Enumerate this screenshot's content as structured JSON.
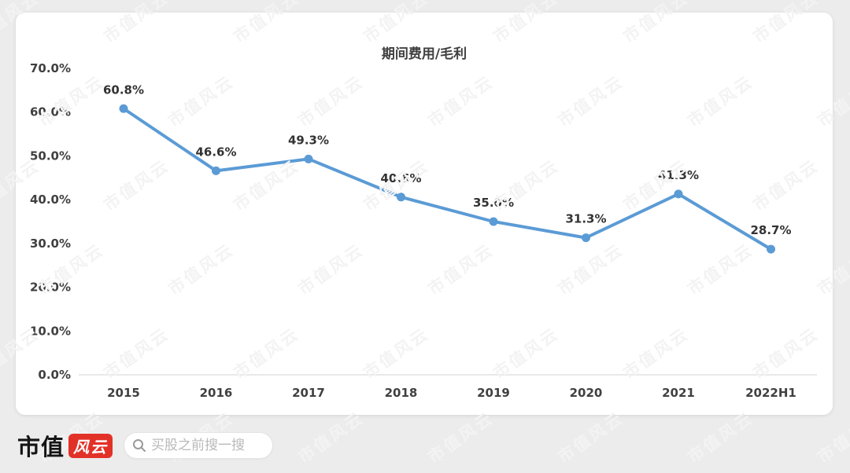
{
  "watermark": {
    "text": "市值风云"
  },
  "chart_data": {
    "type": "line",
    "title": "期间费用/毛利",
    "categories": [
      "2015",
      "2016",
      "2017",
      "2018",
      "2019",
      "2020",
      "2021",
      "2022H1"
    ],
    "values": [
      60.8,
      46.6,
      49.3,
      40.6,
      35.0,
      31.3,
      41.3,
      28.7
    ],
    "data_labels": [
      "60.8%",
      "46.6%",
      "49.3%",
      "40.6%",
      "35.0%",
      "31.3%",
      "41.3%",
      "28.7%"
    ],
    "y_tick_labels": [
      "70.0%",
      "60.0%",
      "50.0%",
      "40.0%",
      "30.0%",
      "20.0%",
      "10.0%",
      "0.0%"
    ],
    "ylim": [
      0,
      70
    ],
    "y_tick_step": 10,
    "grid": false,
    "legend": "none",
    "line_color": "#5B9BD5",
    "marker": "circle",
    "label_color": "#333333",
    "axis_text_color": "#404040",
    "axis_line_color": "#d9d9d9"
  },
  "footer": {
    "logo_text": "市值",
    "logo_badge_text": "风云",
    "brand_red": "#e23228",
    "search_placeholder": "买股之前搜一搜"
  }
}
